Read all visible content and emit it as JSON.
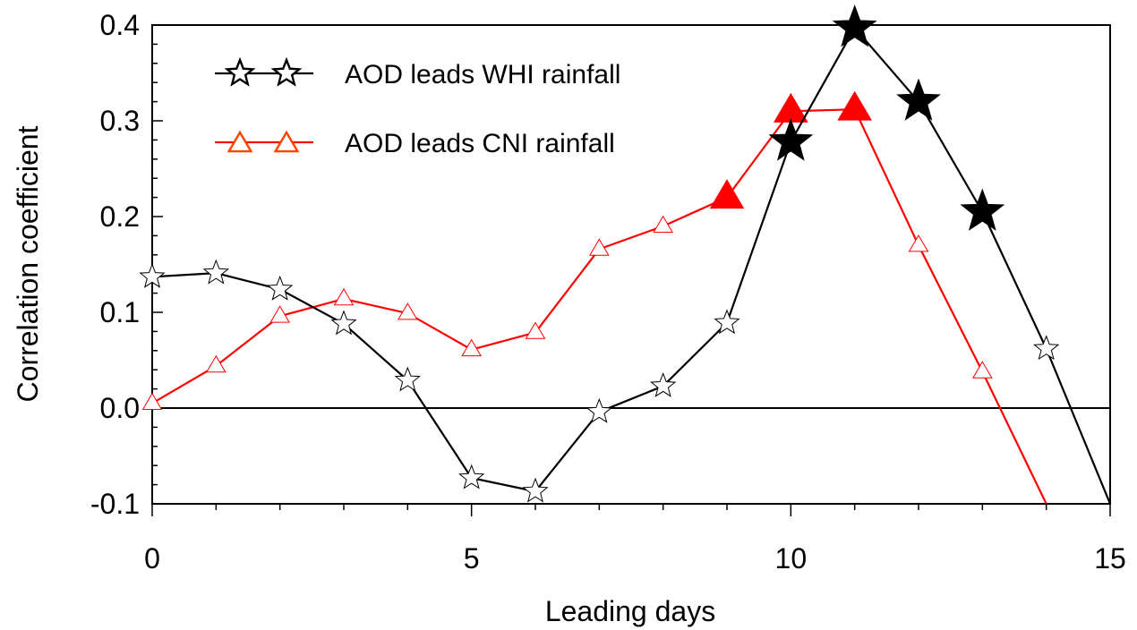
{
  "chart_data": {
    "type": "line",
    "title": "",
    "xlabel": "Leading days",
    "ylabel": "Correlation coefficient",
    "xlim": [
      0,
      15
    ],
    "ylim": [
      -0.1,
      0.4
    ],
    "xticks": [
      0,
      5,
      10,
      15
    ],
    "xtick_labels": [
      "0",
      "5",
      "10",
      "15"
    ],
    "yticks": [
      -0.1,
      0.0,
      0.1,
      0.2,
      0.3,
      0.4
    ],
    "ytick_labels": [
      "-0.1",
      "0.0",
      "0.1",
      "0.2",
      "0.3",
      "0.4"
    ],
    "zero_line": true,
    "grid": false,
    "legend_position": "top-left",
    "series": [
      {
        "name": "AOD leads WHI rainfall",
        "color": "#000000",
        "marker": "star",
        "x": [
          0,
          1,
          2,
          3,
          4,
          5,
          6,
          7,
          8,
          9,
          10,
          11,
          12,
          13,
          14,
          15
        ],
        "y": [
          0.137,
          0.141,
          0.124,
          0.088,
          0.029,
          -0.073,
          -0.087,
          -0.004,
          0.023,
          0.089,
          0.278,
          0.397,
          0.32,
          0.205,
          0.062,
          -0.1
        ],
        "filled": [
          false,
          false,
          false,
          false,
          false,
          false,
          false,
          false,
          false,
          false,
          true,
          true,
          true,
          true,
          false,
          false
        ],
        "markers_shown": [
          true,
          true,
          true,
          true,
          true,
          true,
          true,
          true,
          true,
          true,
          true,
          true,
          true,
          true,
          true,
          false
        ]
      },
      {
        "name": "AOD leads CNI rainfall",
        "color": "#ff0000",
        "marker": "triangle",
        "x": [
          0,
          1,
          2,
          3,
          4,
          5,
          6,
          7,
          8,
          9,
          10,
          11,
          12,
          13,
          14
        ],
        "y": [
          0.005,
          0.044,
          0.096,
          0.114,
          0.099,
          0.061,
          0.079,
          0.166,
          0.19,
          0.22,
          0.31,
          0.312,
          0.17,
          0.038,
          -0.1
        ],
        "filled": [
          false,
          false,
          false,
          false,
          false,
          false,
          false,
          false,
          false,
          true,
          true,
          true,
          false,
          false,
          false
        ],
        "markers_shown": [
          true,
          true,
          true,
          true,
          true,
          true,
          true,
          true,
          true,
          true,
          true,
          true,
          true,
          true,
          false
        ]
      }
    ]
  }
}
